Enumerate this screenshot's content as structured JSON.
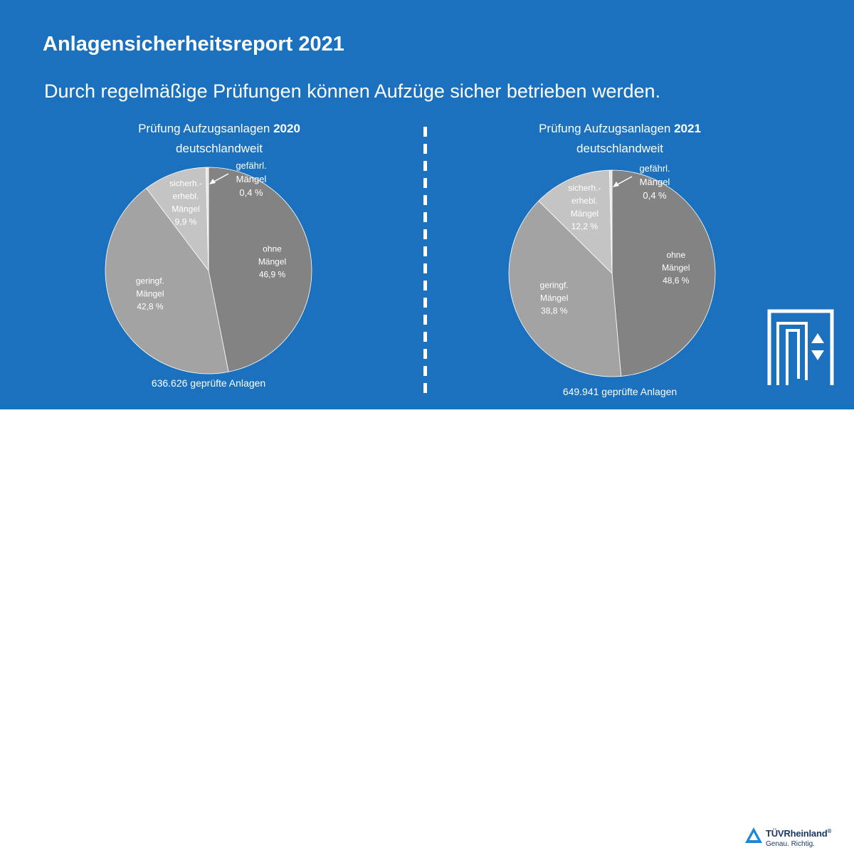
{
  "header": {
    "title": "Anlagensicherheitsreport 2021",
    "subtitle": "Durch regelmäßige Prüfungen können Aufzüge sicher betrieben werden."
  },
  "charts": [
    {
      "heading_prefix": "Prüfung Aufzugsanlagen ",
      "heading_year": "2020",
      "heading_line2": "deutschlandweit",
      "caption": "636.626 geprüfte Anlagen"
    },
    {
      "heading_prefix": "Prüfung Aufzugsanlagen ",
      "heading_year": "2021",
      "heading_line2": "deutschlandweit",
      "caption": "649.941 geprüfte Anlagen"
    }
  ],
  "chart_data": [
    {
      "type": "pie",
      "title": "Prüfung Aufzugsanlagen 2020 deutschlandweit",
      "slices": [
        {
          "label_lines": [
            "ohne",
            "Mängel",
            "46,9 %"
          ],
          "value": 46.9,
          "color": "#838383"
        },
        {
          "label_lines": [
            "geringf.",
            "Mängel",
            "42,8 %"
          ],
          "value": 42.8,
          "color": "#a3a3a3"
        },
        {
          "label_lines": [
            "sicherh.-",
            "erhebl.",
            "Mängel",
            "9,9 %"
          ],
          "value": 9.9,
          "color": "#c4c4c4"
        },
        {
          "label_lines": [
            "gefährl.",
            "Mängel",
            "0,4 %"
          ],
          "value": 0.4,
          "color": "#e6e6e6"
        }
      ],
      "total_label": "636.626 geprüfte Anlagen"
    },
    {
      "type": "pie",
      "title": "Prüfung Aufzugsanlagen 2021 deutschlandweit",
      "slices": [
        {
          "label_lines": [
            "ohne",
            "Mängel",
            "48,6 %"
          ],
          "value": 48.6,
          "color": "#838383"
        },
        {
          "label_lines": [
            "geringf.",
            "Mängel",
            "38,8 %"
          ],
          "value": 38.8,
          "color": "#a3a3a3"
        },
        {
          "label_lines": [
            "sicherh.-",
            "erhebl.",
            "Mängel",
            "12,2 %"
          ],
          "value": 12.2,
          "color": "#c4c4c4"
        },
        {
          "label_lines": [
            "gefährl.",
            "Mängel",
            "0,4 %"
          ],
          "value": 0.4,
          "color": "#e6e6e6"
        }
      ],
      "total_label": "649.941 geprüfte Anlagen"
    }
  ],
  "colors": {
    "background": "#1b71bd",
    "brand_blue": "#1b3a63",
    "footer": "#ffffff"
  },
  "brand": {
    "logo_icon": "tuv-triangle-icon",
    "name": "TÜVRheinland",
    "registered": "®",
    "slogan": "Genau. Richtig."
  },
  "decor": {
    "elevator_icon": "elevator-icon"
  }
}
